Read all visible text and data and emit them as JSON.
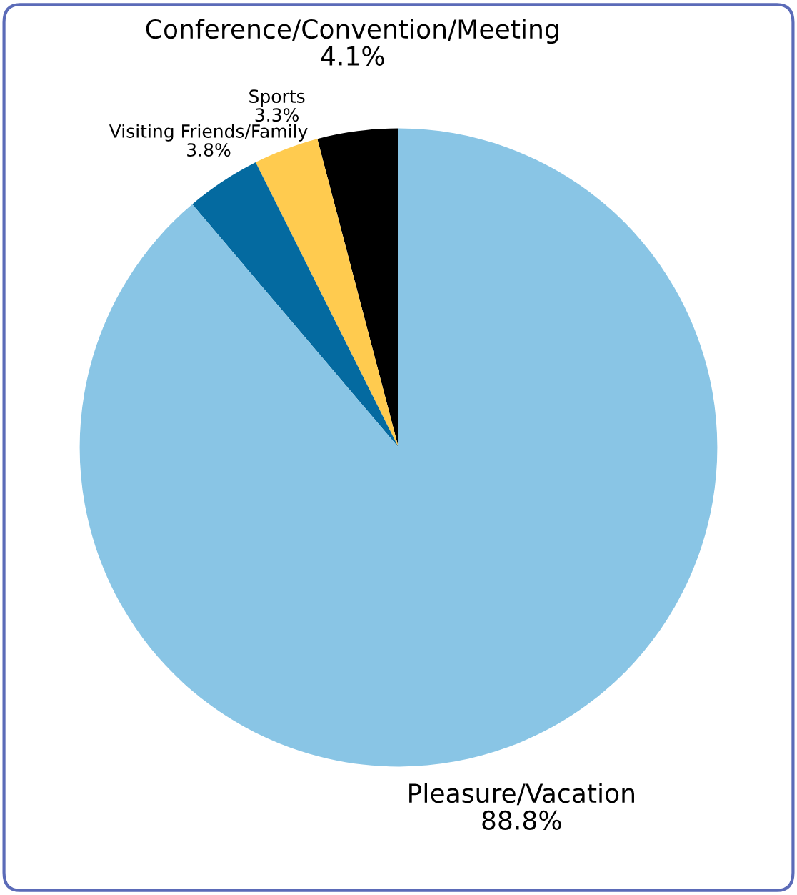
{
  "chart_data": {
    "type": "pie",
    "categories": [
      "Conference/Convention/Meeting",
      "Sports",
      "Visiting Friends/Family",
      "Pleasure/Vacation"
    ],
    "values": [
      4.1,
      3.3,
      3.8,
      88.8
    ],
    "colors": [
      "#000000",
      "#ffcb4f",
      "#046aa0",
      "#89c5e5"
    ],
    "value_labels": [
      "4.1%",
      "3.3%",
      "3.8%",
      "88.8%"
    ],
    "legend": false
  }
}
